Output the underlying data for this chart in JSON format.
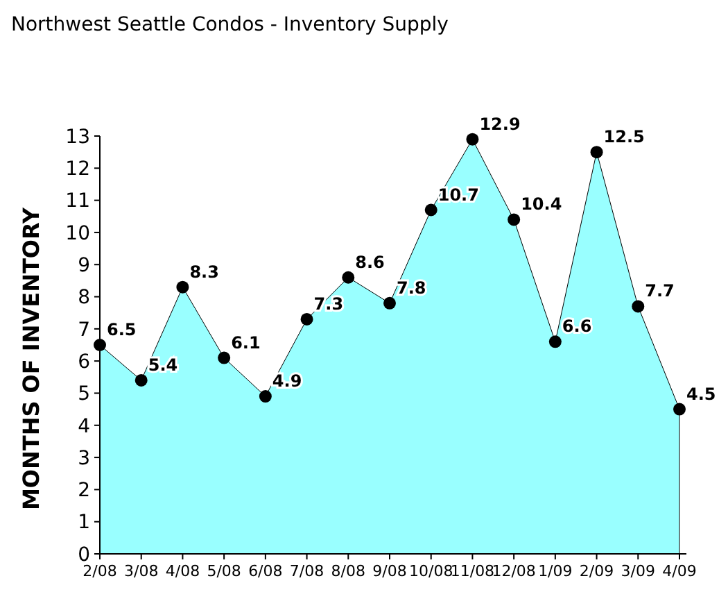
{
  "chart_data": {
    "type": "area",
    "title": "Northwest Seattle Condos - Inventory Supply",
    "ylabel": "MONTHS OF INVENTORY",
    "categories": [
      "2/08",
      "3/08",
      "4/08",
      "5/08",
      "6/08",
      "7/08",
      "8/08",
      "9/08",
      "10/08",
      "11/08",
      "12/08",
      "1/09",
      "2/09",
      "3/09",
      "4/09"
    ],
    "series": [
      {
        "color": "#99ffff",
        "values": [
          6.5,
          5.4,
          8.3,
          6.1,
          4.9,
          7.3,
          8.6,
          7.8,
          10.7,
          12.9,
          10.4,
          6.6,
          12.5,
          7.7,
          4.5
        ]
      }
    ],
    "ylim": [
      0,
      13
    ],
    "yticks": [
      0,
      1,
      2,
      3,
      4,
      5,
      6,
      7,
      8,
      9,
      10,
      11,
      12,
      13
    ],
    "marker": "circle",
    "data_labels": true,
    "grid": false
  }
}
